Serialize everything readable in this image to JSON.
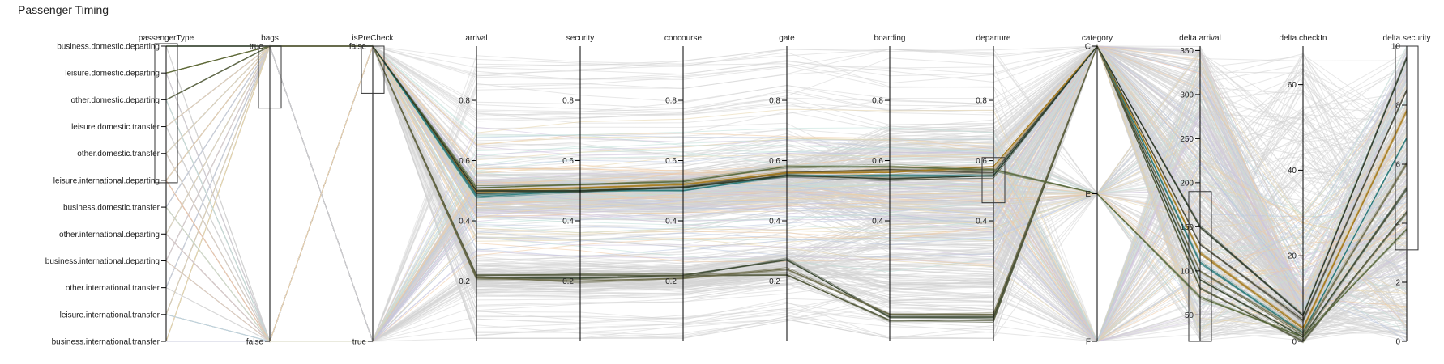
{
  "title": "Passenger Timing",
  "chart_data": {
    "type": "parallel-coordinates",
    "title": "Passenger Timing",
    "axes": [
      {
        "name": "passengerType",
        "kind": "category",
        "ticks": [
          "business.domestic.departing",
          "leisure.domestic.departing",
          "other.domestic.departing",
          "leisure.domestic.transfer",
          "other.domestic.transfer",
          "leisure.international.departing",
          "business.domestic.transfer",
          "other.international.departing",
          "business.international.departing",
          "other.international.transfer",
          "leisure.international.transfer",
          "business.international.transfer"
        ],
        "brush": [
          "business.domestic.departing",
          "leisure.international.departing"
        ]
      },
      {
        "name": "bags",
        "kind": "category",
        "ticks": [
          "true",
          "false"
        ],
        "brush_fraction": [
          0.0,
          0.21
        ]
      },
      {
        "name": "isPreCheck",
        "kind": "category",
        "ticks": [
          "false",
          "true"
        ],
        "brush_fraction": [
          0.0,
          0.16
        ]
      },
      {
        "name": "arrival",
        "kind": "number",
        "domain": [
          0,
          0.98
        ],
        "ticks": [
          0.2,
          0.4,
          0.6,
          0.8
        ]
      },
      {
        "name": "security",
        "kind": "number",
        "domain": [
          0,
          0.98
        ],
        "ticks": [
          0.2,
          0.4,
          0.6,
          0.8
        ]
      },
      {
        "name": "concourse",
        "kind": "number",
        "domain": [
          0,
          0.98
        ],
        "ticks": [
          0.2,
          0.4,
          0.6,
          0.8
        ]
      },
      {
        "name": "gate",
        "kind": "number",
        "domain": [
          0,
          0.98
        ],
        "ticks": [
          0.2,
          0.4,
          0.6,
          0.8
        ]
      },
      {
        "name": "boarding",
        "kind": "number",
        "domain": [
          0,
          0.98
        ],
        "ticks": [
          0.4,
          0.6,
          0.8
        ]
      },
      {
        "name": "departure",
        "kind": "number",
        "domain": [
          0,
          0.98
        ],
        "ticks": [
          0.4,
          0.6,
          0.8
        ],
        "brush": [
          0.46,
          0.61
        ]
      },
      {
        "name": "category",
        "kind": "category",
        "ticks": [
          "C",
          "E",
          "F"
        ]
      },
      {
        "name": "delta.arrival",
        "kind": "number",
        "domain": [
          20,
          355
        ],
        "ticks": [
          50,
          100,
          150,
          200,
          250,
          300,
          350
        ],
        "brush": [
          20,
          190
        ]
      },
      {
        "name": "delta.checkIn",
        "kind": "number",
        "domain": [
          0,
          69
        ],
        "ticks": [
          0,
          20,
          40,
          60
        ]
      },
      {
        "name": "delta.security",
        "kind": "number",
        "domain": [
          0,
          10
        ],
        "ticks": [
          0,
          2,
          4,
          6,
          8,
          10
        ],
        "brush": [
          3.1,
          10
        ]
      }
    ],
    "selected_paths": [
      {
        "values": [
          "business.domestic.departing",
          "true",
          "false",
          0.49,
          0.5,
          0.51,
          0.56,
          0.57,
          0.56,
          "C",
          130,
          5,
          8.5
        ],
        "color": "#4d4d3c"
      },
      {
        "values": [
          "leisure.domestic.departing",
          "true",
          "false",
          0.5,
          0.51,
          0.52,
          0.56,
          0.56,
          0.58,
          "C",
          120,
          3,
          7.8
        ],
        "color": "#a67c1e"
      },
      {
        "values": [
          "other.domestic.departing",
          "true",
          "false",
          0.48,
          0.5,
          0.5,
          0.55,
          0.55,
          0.55,
          "C",
          110,
          2,
          6.9
        ],
        "color": "#2b7b7b"
      },
      {
        "values": [
          "business.domestic.departing",
          "true",
          "false",
          0.21,
          0.21,
          0.22,
          0.27,
          0.08,
          0.08,
          "C",
          90,
          1,
          5.2
        ],
        "color": "#3b4a32"
      },
      {
        "values": [
          "business.domestic.departing",
          "true",
          "false",
          0.22,
          0.22,
          0.22,
          0.22,
          0.07,
          0.07,
          "C",
          80,
          0,
          4.4
        ],
        "color": "#555a3e"
      },
      {
        "values": [
          "leisure.domestic.departing",
          "true",
          "false",
          0.51,
          0.52,
          0.53,
          0.58,
          0.58,
          0.57,
          "E",
          70,
          1,
          3.8
        ],
        "color": "#5a6b3e"
      },
      {
        "values": [
          "business.domestic.departing",
          "true",
          "false",
          0.5,
          0.5,
          0.51,
          0.55,
          0.54,
          0.55,
          "C",
          150,
          6,
          9.6
        ],
        "color": "#2f3b2a"
      },
      {
        "values": [
          "other.domestic.departing",
          "true",
          "false",
          0.21,
          0.2,
          0.21,
          0.24,
          0.09,
          0.09,
          "C",
          100,
          2,
          6.0
        ],
        "color": "#6b6b4a"
      }
    ],
    "background_path_color": "#d3d3d3",
    "context_colors": [
      "#b9c7e0",
      "#f0c8a0",
      "#cfc2de",
      "#bfe0d9",
      "#e6d3a8"
    ]
  }
}
